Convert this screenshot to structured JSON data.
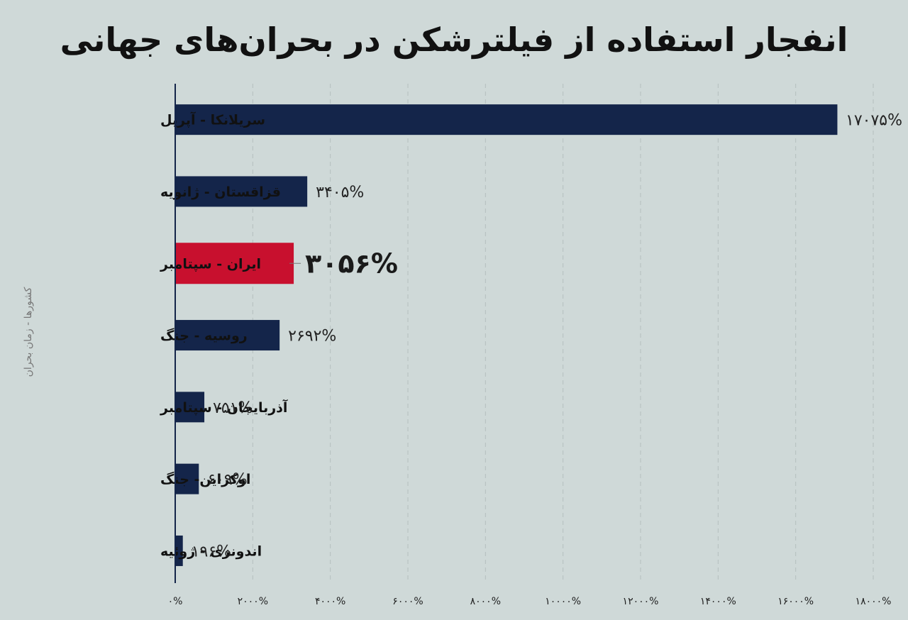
{
  "chart_data": {
    "type": "bar",
    "orientation": "horizontal",
    "title": "انفجار استفاده از فیلترشکن در بحران‌های جهانی",
    "ylabel": "کشورها - زمان بحران",
    "xlabel": "",
    "xlim": [
      0,
      18000
    ],
    "grid": true,
    "categories": [
      "سریلانکا - آپریل",
      "قزاقستان - ژانویه",
      "ایران - سپتامبر",
      "روسیه - جنگ",
      "آذربایجان - سپتامبر",
      "اوکراین- جنگ",
      "اندونزی - ژوئیه"
    ],
    "values": [
      17075,
      3405,
      3056,
      2692,
      751,
      609,
      196
    ],
    "value_labels": [
      "۱۷۰۷۵%",
      "۳۴۰۵%",
      "۳۰۵۶%",
      "۲۶۹۲%",
      "۷۵۱%",
      "۶۰۹%",
      "۱۹۶%"
    ],
    "highlight_index": 2,
    "x_ticks": [
      0,
      2000,
      4000,
      6000,
      8000,
      10000,
      12000,
      14000,
      16000,
      18000
    ],
    "x_tick_labels": [
      "۰%",
      "۲۰۰۰%",
      "۴۰۰۰%",
      "۶۰۰۰%",
      "۸۰۰۰%",
      "۱۰۰۰۰%",
      "۱۲۰۰۰%",
      "۱۴۰۰۰%",
      "۱۶۰۰۰%",
      "۱۸۰۰۰%"
    ]
  },
  "colors": {
    "background": "#cfd9d8",
    "bar": "#14254a",
    "highlight_bar": "#c8102e",
    "axis": "#14254a",
    "grid": "#b5bfbe"
  }
}
